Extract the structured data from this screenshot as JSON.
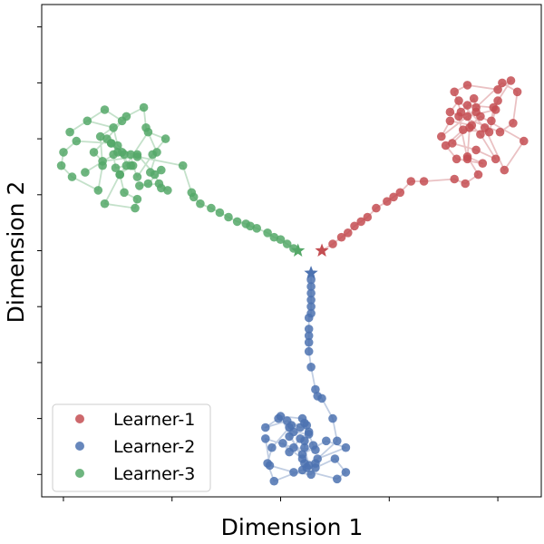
{
  "chart_data": {
    "type": "scatter",
    "title": "",
    "xlabel": "Dimension 1",
    "ylabel": "Dimension 2",
    "xlim": [
      -1.1,
      1.2
    ],
    "ylim": [
      -1.1,
      1.1
    ],
    "xticks": [
      -1.0,
      -0.5,
      0.0,
      0.5,
      1.0
    ],
    "yticks": [
      -1.0,
      -0.75,
      -0.5,
      -0.25,
      0.0,
      0.25,
      0.5,
      0.75,
      1.0
    ],
    "show_tick_labels": false,
    "grid": false,
    "legend": {
      "position": "lower-left"
    },
    "series": [
      {
        "name": "Learner-1",
        "color": "#c44e52",
        "start": [
          0.19,
          0.0
        ],
        "path": [
          [
            0.19,
            0.0
          ],
          [
            0.24,
            0.03
          ],
          [
            0.28,
            0.06
          ],
          [
            0.31,
            0.08
          ],
          [
            0.34,
            0.11
          ],
          [
            0.37,
            0.13
          ],
          [
            0.4,
            0.15
          ],
          [
            0.44,
            0.19
          ],
          [
            0.49,
            0.22
          ],
          [
            0.52,
            0.24
          ],
          [
            0.55,
            0.26
          ],
          [
            0.6,
            0.31
          ],
          [
            0.66,
            0.31
          ],
          [
            0.8,
            0.32
          ],
          [
            0.85,
            0.3
          ],
          [
            0.91,
            0.34
          ],
          [
            0.86,
            0.42
          ],
          [
            0.93,
            0.39
          ],
          [
            0.81,
            0.41
          ],
          [
            0.76,
            0.47
          ],
          [
            0.84,
            0.54
          ],
          [
            0.96,
            0.53
          ],
          [
            0.99,
            0.63
          ],
          [
            0.86,
            0.6
          ],
          [
            0.74,
            0.51
          ],
          [
            0.78,
            0.58
          ],
          [
            0.88,
            0.56
          ],
          [
            0.92,
            0.52
          ],
          [
            0.99,
            0.41
          ],
          [
            0.9,
            0.45
          ],
          [
            0.79,
            0.48
          ],
          [
            0.92,
            0.6
          ],
          [
            1.12,
            0.49
          ],
          [
            1.03,
            0.36
          ],
          [
            0.94,
            0.55
          ],
          [
            0.82,
            0.67
          ],
          [
            0.78,
            0.62
          ],
          [
            1.01,
            0.53
          ],
          [
            1.07,
            0.57
          ],
          [
            1.09,
            0.71
          ],
          [
            1.02,
            0.75
          ],
          [
            0.9,
            0.64
          ],
          [
            0.89,
            0.68
          ],
          [
            0.83,
            0.62
          ],
          [
            0.8,
            0.71
          ],
          [
            0.86,
            0.74
          ],
          [
            1.0,
            0.72
          ],
          [
            1.06,
            0.76
          ],
          [
            1.0,
            0.67
          ],
          [
            0.97,
            0.58
          ],
          [
            0.98,
            0.64
          ],
          [
            0.86,
            0.65
          ],
          [
            0.87,
            0.55
          ],
          [
            0.86,
            0.41
          ],
          [
            0.82,
            0.6
          ],
          [
            0.9,
            0.62
          ]
        ]
      },
      {
        "name": "Learner-2",
        "color": "#4c72b0",
        "start": [
          0.14,
          -0.1
        ],
        "path": [
          [
            0.14,
            -0.1
          ],
          [
            0.14,
            -0.13
          ],
          [
            0.14,
            -0.16
          ],
          [
            0.14,
            -0.19
          ],
          [
            0.14,
            -0.22
          ],
          [
            0.14,
            -0.25
          ],
          [
            0.14,
            -0.28
          ],
          [
            0.13,
            -0.3
          ],
          [
            0.13,
            -0.35
          ],
          [
            0.13,
            -0.38
          ],
          [
            0.13,
            -0.41
          ],
          [
            0.13,
            -0.45
          ],
          [
            0.14,
            -0.52
          ],
          [
            0.16,
            -0.62
          ],
          [
            0.17,
            -0.65
          ],
          [
            0.19,
            -0.66
          ],
          [
            0.24,
            -0.75
          ],
          [
            0.26,
            -0.85
          ],
          [
            0.17,
            -0.93
          ],
          [
            0.3,
            -0.88
          ],
          [
            0.21,
            -0.85
          ],
          [
            0.1,
            -0.91
          ],
          [
            0.04,
            -0.83
          ],
          [
            0.04,
            -0.79
          ],
          [
            -0.04,
            -0.88
          ],
          [
            -0.06,
            -0.95
          ],
          [
            -0.03,
            -1.03
          ],
          [
            0.1,
            -0.98
          ],
          [
            0.26,
            -1.02
          ],
          [
            0.3,
            -0.99
          ],
          [
            0.25,
            -0.93
          ],
          [
            0.16,
            -0.97
          ],
          [
            0.11,
            -0.95
          ],
          [
            0.11,
            -0.85
          ],
          [
            0.12,
            -0.78
          ],
          [
            0.09,
            -0.79
          ],
          [
            0.03,
            -0.76
          ],
          [
            -0.07,
            -0.79
          ],
          [
            -0.01,
            -0.75
          ],
          [
            0.06,
            -0.81
          ],
          [
            0.13,
            -0.82
          ],
          [
            0.15,
            -0.87
          ],
          [
            0.16,
            -0.89
          ],
          [
            0.06,
            -0.88
          ],
          [
            -0.07,
            -0.84
          ],
          [
            -0.05,
            -0.96
          ],
          [
            0.06,
            -0.99
          ],
          [
            0.14,
            -1.0
          ],
          [
            0.16,
            -0.95
          ],
          [
            0.1,
            -0.93
          ],
          [
            0.01,
            -0.86
          ],
          [
            0.04,
            -0.9
          ],
          [
            0.09,
            -0.84
          ],
          [
            0.13,
            -0.81
          ],
          [
            0.11,
            -0.88
          ],
          [
            0.13,
            -0.96
          ],
          [
            0.12,
            -0.97
          ],
          [
            0.0,
            -0.74
          ],
          [
            0.1,
            -0.75
          ],
          [
            0.11,
            -0.77
          ],
          [
            0.05,
            -0.78
          ]
        ]
      },
      {
        "name": "Learner-3",
        "color": "#55a868",
        "start": [
          0.08,
          0.0
        ],
        "path": [
          [
            0.08,
            0.0
          ],
          [
            0.06,
            0.01
          ],
          [
            0.03,
            0.03
          ],
          [
            0.0,
            0.05
          ],
          [
            -0.03,
            0.06
          ],
          [
            -0.06,
            0.08
          ],
          [
            -0.11,
            0.1
          ],
          [
            -0.14,
            0.11
          ],
          [
            -0.16,
            0.12
          ],
          [
            -0.2,
            0.13
          ],
          [
            -0.24,
            0.15
          ],
          [
            -0.28,
            0.17
          ],
          [
            -0.32,
            0.19
          ],
          [
            -0.37,
            0.21
          ],
          [
            -0.4,
            0.24
          ],
          [
            -0.41,
            0.26
          ],
          [
            -0.45,
            0.38
          ],
          [
            -0.66,
            0.42
          ],
          [
            -0.82,
            0.4
          ],
          [
            -0.86,
            0.44
          ],
          [
            -0.8,
            0.5
          ],
          [
            -0.71,
            0.6
          ],
          [
            -0.63,
            0.64
          ],
          [
            -0.62,
            0.55
          ],
          [
            -0.57,
            0.44
          ],
          [
            -0.6,
            0.35
          ],
          [
            -0.55,
            0.36
          ],
          [
            -0.61,
            0.3
          ],
          [
            -0.65,
            0.29
          ],
          [
            -0.56,
            0.3
          ],
          [
            -0.52,
            0.27
          ],
          [
            -0.55,
            0.28
          ],
          [
            -0.58,
            0.34
          ],
          [
            -0.66,
            0.43
          ],
          [
            -0.73,
            0.44
          ],
          [
            -0.71,
            0.38
          ],
          [
            -0.76,
            0.37
          ],
          [
            -0.77,
            0.43
          ],
          [
            -0.72,
            0.43
          ],
          [
            -0.78,
            0.48
          ],
          [
            -0.94,
            0.49
          ],
          [
            -1.0,
            0.44
          ],
          [
            -1.01,
            0.38
          ],
          [
            -0.96,
            0.33
          ],
          [
            -0.84,
            0.27
          ],
          [
            -0.82,
            0.38
          ],
          [
            -0.83,
            0.51
          ],
          [
            -0.73,
            0.58
          ],
          [
            -0.81,
            0.63
          ],
          [
            -0.97,
            0.53
          ],
          [
            -0.89,
            0.58
          ],
          [
            -0.77,
            0.55
          ],
          [
            -0.75,
            0.47
          ],
          [
            -0.69,
            0.43
          ],
          [
            -0.68,
            0.38
          ],
          [
            -0.66,
            0.33
          ],
          [
            -0.59,
            0.43
          ],
          [
            -0.53,
            0.5
          ],
          [
            -0.61,
            0.53
          ],
          [
            -0.74,
            0.34
          ],
          [
            -0.72,
            0.26
          ],
          [
            -0.66,
            0.23
          ],
          [
            -0.67,
            0.19
          ],
          [
            -0.81,
            0.21
          ],
          [
            -0.74,
            0.34
          ],
          [
            -0.69,
            0.38
          ],
          [
            -0.78,
            0.48
          ],
          [
            -0.75,
            0.44
          ],
          [
            -0.9,
            0.35
          ]
        ]
      }
    ]
  }
}
